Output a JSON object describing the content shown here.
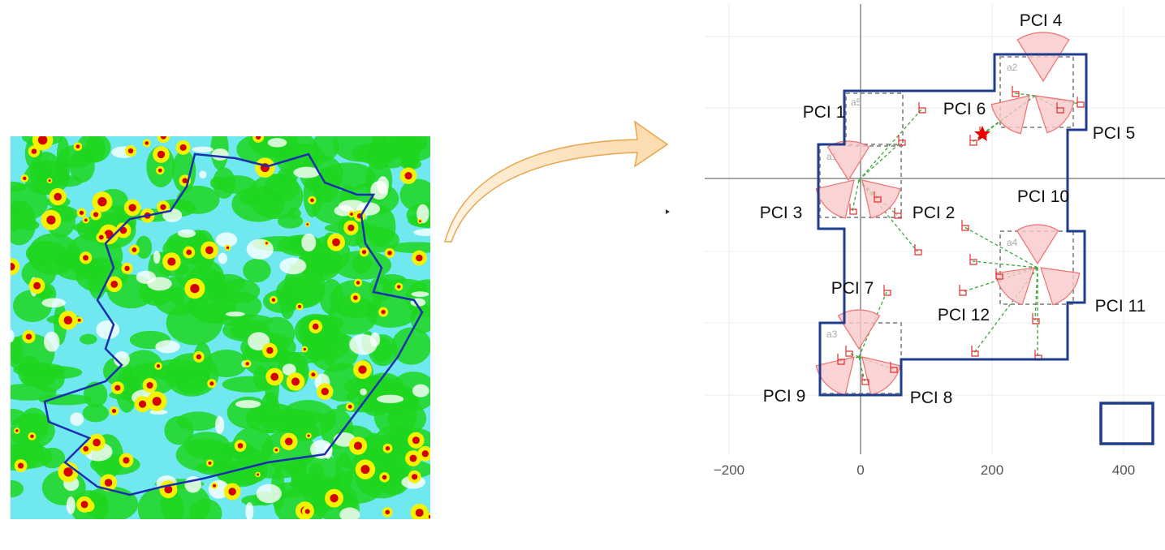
{
  "figure": {
    "pci_labels": [
      "PCI 1",
      "PCI 2",
      "PCI 3",
      "PCI 4",
      "PCI 5",
      "PCI 6",
      "PCI 7",
      "PCI 8",
      "PCI 9",
      "PCI 10",
      "PCI 11",
      "PCI 12"
    ],
    "area_labels": [
      "a1",
      "a2",
      "a3",
      "a4",
      "a5"
    ],
    "x_ticks": [
      {
        "value": -200,
        "label": "−200"
      },
      0,
      200,
      400
    ]
  }
}
